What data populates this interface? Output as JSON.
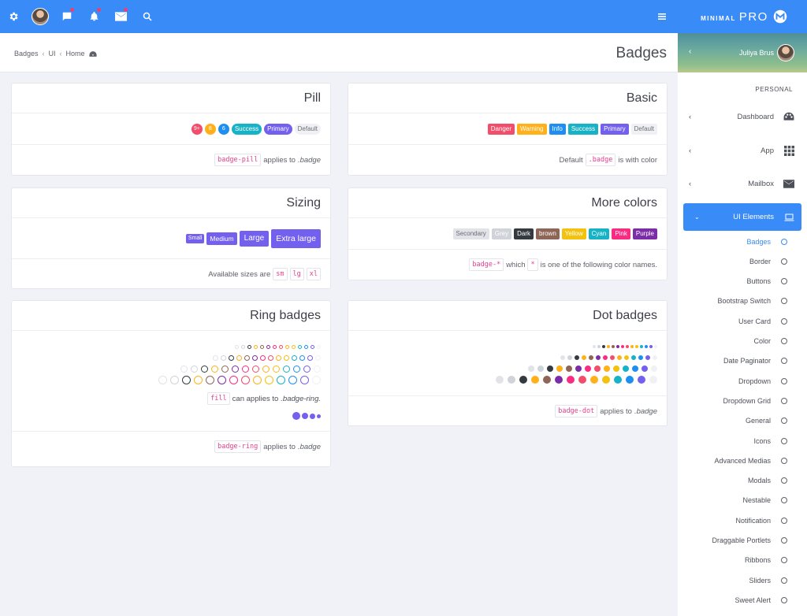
{
  "topbar": {
    "icons": [
      "gear-icon",
      "avatar",
      "chat-icon",
      "bell-icon",
      "mail-icon",
      "search-icon"
    ],
    "menu_icon": "hamburger-icon"
  },
  "logo": {
    "brand_bold": "MINIMAL",
    "brand_light": "PRO"
  },
  "breadcrumb": {
    "items": [
      "Badges",
      "UI",
      "Home"
    ]
  },
  "page_title": "Badges",
  "cards": {
    "pill": {
      "title": "Pill",
      "badges": [
        {
          "text": "9+",
          "color": "danger",
          "shape": "circle"
        },
        {
          "text": "8",
          "color": "warning",
          "shape": "circle"
        },
        {
          "text": "6",
          "color": "info",
          "shape": "circle"
        },
        {
          "text": "Success",
          "color": "success",
          "shape": "pill"
        },
        {
          "text": "Primary",
          "color": "primary",
          "shape": "pill"
        },
        {
          "text": "Default",
          "color": "default",
          "shape": "pill"
        }
      ],
      "footer": {
        "code": "badge-pill",
        "text": "applies to",
        "em": ".badge"
      }
    },
    "basic": {
      "title": "Basic",
      "badges": [
        "Danger",
        "Warning",
        "Info",
        "Success",
        "Primary",
        "Default"
      ],
      "footer": {
        "pre": "Default",
        "code": ".badge",
        "text": "is with color"
      }
    },
    "sizing": {
      "title": "Sizing",
      "badges": [
        "Small",
        "Medium",
        "Large",
        "Extra large"
      ],
      "footer": {
        "text": "Available sizes are",
        "codes": [
          "sm",
          "lg",
          "xl"
        ]
      }
    },
    "more_colors": {
      "title": "More colors",
      "badges": [
        "Secondary",
        "Grey",
        "Dark",
        "brown",
        "Yellow",
        "Cyan",
        "Pink",
        "Purple"
      ],
      "footer": {
        "code": "badge-*",
        "text1": "which",
        "code2": "*",
        "text2": "is one of the following color names."
      }
    },
    "ring": {
      "title": "Ring badges",
      "note": {
        "code": "fill",
        "text": "can applies to",
        "em": ".badge-ring."
      },
      "footer": {
        "code": "badge-ring",
        "text": "applies to",
        "em": ".badge"
      }
    },
    "dot": {
      "title": "Dot badges",
      "footer": {
        "code": "badge-dot",
        "text": "applies to",
        "em": ".badge"
      }
    }
  },
  "colors": {
    "ring_dot": [
      "#e1e3e8",
      "#d0d3d9",
      "#343a40",
      "#ffb01a",
      "#8d6658",
      "#7b2da8",
      "#f92c82",
      "#f24d6a",
      "#ffb01a",
      "#f2c20f",
      "#17b2c5",
      "#1e8ff0",
      "#7460ee",
      "#f0f1f4"
    ]
  },
  "sidebar": {
    "user": "Juliya Brus",
    "section": "PERSONAL",
    "menu": [
      {
        "label": "Dashboard",
        "icon": "palette-icon"
      },
      {
        "label": "App",
        "icon": "grid-icon"
      },
      {
        "label": "Mailbox",
        "icon": "envelope-icon"
      },
      {
        "label": "UI Elements",
        "icon": "laptop-icon"
      }
    ],
    "submenu": [
      "Badges",
      "Border",
      "Buttons",
      "Bootstrap Switch",
      "User Card",
      "Color",
      "Date Paginator",
      "Dropdown",
      "Dropdown Grid",
      "General",
      "Icons",
      "Advanced Medias",
      "Modals",
      "Nestable",
      "Notification",
      "Draggable Portlets",
      "Ribbons",
      "Sliders",
      "Sweet Alert"
    ]
  }
}
